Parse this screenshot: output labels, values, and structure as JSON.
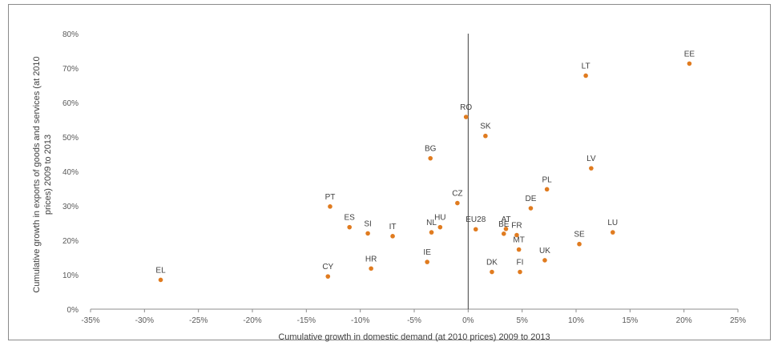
{
  "chart_data": {
    "type": "scatter",
    "xlabel": "Cumulative growth in domestic demand (at 2010 prices) 2009 to 2013",
    "ylabel_lines": [
      "Cumulative growth in exports of goods and services (at 2010",
      "prices) 2009 to 2013"
    ],
    "xlim": [
      -35,
      25
    ],
    "ylim": [
      0,
      80
    ],
    "x_ticks": [
      -35,
      -30,
      -25,
      -20,
      -15,
      -10,
      -5,
      0,
      5,
      10,
      15,
      20,
      25
    ],
    "y_ticks": [
      0,
      10,
      20,
      30,
      40,
      50,
      60,
      70,
      80
    ],
    "x_tick_labels": [
      "-35%",
      "-30%",
      "-25%",
      "-20%",
      "-15%",
      "-10%",
      "-5%",
      "0%",
      "5%",
      "10%",
      "15%",
      "20%",
      "25%"
    ],
    "y_tick_labels": [
      "0%",
      "10%",
      "20%",
      "30%",
      "40%",
      "50%",
      "60%",
      "70%",
      "80%"
    ],
    "grid": false,
    "point_color": "#e07b1f",
    "points": [
      {
        "label": "EL",
        "x": -28.5,
        "y": 8.5
      },
      {
        "label": "CY",
        "x": -13.0,
        "y": 9.5
      },
      {
        "label": "PT",
        "x": -12.8,
        "y": 29.8
      },
      {
        "label": "ES",
        "x": -11.0,
        "y": 23.8
      },
      {
        "label": "SI",
        "x": -9.3,
        "y": 22.0
      },
      {
        "label": "HR",
        "x": -9.0,
        "y": 11.8
      },
      {
        "label": "IT",
        "x": -7.0,
        "y": 21.2
      },
      {
        "label": "IE",
        "x": -3.8,
        "y": 13.7
      },
      {
        "label": "NL",
        "x": -3.4,
        "y": 22.3
      },
      {
        "label": "HU",
        "x": -2.6,
        "y": 23.8
      },
      {
        "label": "BG",
        "x": -3.5,
        "y": 43.8
      },
      {
        "label": "CZ",
        "x": -1.0,
        "y": 30.8
      },
      {
        "label": "RO",
        "x": -0.2,
        "y": 55.8
      },
      {
        "label": "EU28",
        "x": 0.7,
        "y": 23.2
      },
      {
        "label": "SK",
        "x": 1.6,
        "y": 50.3
      },
      {
        "label": "DK",
        "x": 2.2,
        "y": 10.8
      },
      {
        "label": "AT",
        "x": 3.5,
        "y": 23.3
      },
      {
        "label": "BE",
        "x": 3.3,
        "y": 21.9
      },
      {
        "label": "FR",
        "x": 4.5,
        "y": 21.5
      },
      {
        "label": "MT",
        "x": 4.7,
        "y": 17.3
      },
      {
        "label": "FI",
        "x": 4.8,
        "y": 10.8
      },
      {
        "label": "DE",
        "x": 5.8,
        "y": 29.3
      },
      {
        "label": "PL",
        "x": 7.3,
        "y": 34.8
      },
      {
        "label": "UK",
        "x": 7.1,
        "y": 14.2
      },
      {
        "label": "SE",
        "x": 10.3,
        "y": 18.9
      },
      {
        "label": "LT",
        "x": 10.9,
        "y": 67.8
      },
      {
        "label": "LV",
        "x": 11.4,
        "y": 40.9
      },
      {
        "label": "LU",
        "x": 13.4,
        "y": 22.3
      },
      {
        "label": "EE",
        "x": 20.5,
        "y": 71.3
      }
    ]
  }
}
